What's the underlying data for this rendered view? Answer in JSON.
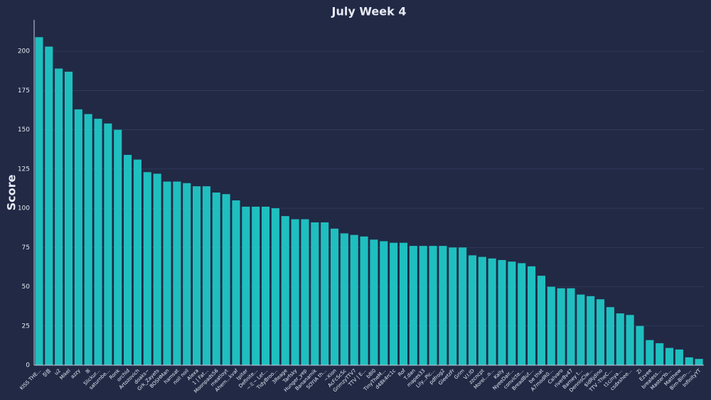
{
  "chart_data": {
    "type": "bar",
    "title": "July Week 4",
    "y_label": "Score",
    "color": "#1fbfbf",
    "grid": true,
    "categories": [
      "KISS THE...",
      "징쯥",
      "u2",
      "Mikel",
      "azzy",
      "ꕤ",
      "Slickur...",
      "saturnbe...",
      "Ronk",
      "orchid",
      "Artozovich",
      "doaks~",
      "Grk_Zayets",
      "BOSHMan",
      "hamsat",
      "noil noil",
      "Alexa",
      "1 | Fat...",
      "Moonpads56",
      "meatloyt",
      "Ahem...kvaf",
      "tpiter",
      "Definite...",
      "~ミ~ Let...",
      "TidyBroo...",
      "3Reage",
      "Tarfsky",
      "Hunger_yep",
      "Bananamik",
      "SOYIA th...",
      "~Xion",
      "AcFcScSc",
      "GrimzyTTV7",
      "TTV | E...",
      "b8l0",
      "TinyTheM...",
      "d48k4rc1c",
      "Rof",
      "T.dan",
      "mapes33",
      "Lily...Pic...",
      "pdfrog2",
      "GleetzFr",
      "Grim",
      "V.I.ID",
      "zzcncpt",
      "Morel...o...",
      "Kally",
      "NyeeDair...",
      "convicte...",
      "BreadBut...",
      "be that",
      "A7modR0...",
      "Calvaro",
      "river8v47",
      "Barney t...",
      "DennisClw...",
      "$ldRjdino",
      "TTV -TheC...",
      "t1c/nya...",
      "csdxshee...",
      "Zi",
      "Ezvee",
      "brealess...",
      "MasterYo...",
      "Matthew",
      "Bim-Bim-...",
      "InfinityYT"
    ],
    "values": [
      209,
      203,
      189,
      187,
      163,
      160,
      157,
      154,
      150,
      134,
      131,
      123,
      122,
      117,
      117,
      116,
      114,
      114,
      110,
      109,
      105,
      101,
      101,
      101,
      100,
      95,
      93,
      93,
      91,
      91,
      87,
      84,
      83,
      82,
      80,
      79,
      78,
      78,
      76,
      76,
      76,
      76,
      75,
      75,
      70,
      69,
      68,
      67,
      66,
      65,
      63,
      57,
      50,
      49,
      49,
      45,
      44,
      42,
      37,
      33,
      32,
      25,
      16,
      14,
      11,
      10,
      5,
      4
    ],
    "ylim": [
      0,
      220
    ],
    "yticks": [
      0,
      25,
      50,
      75,
      100,
      125,
      150,
      175,
      200
    ]
  }
}
